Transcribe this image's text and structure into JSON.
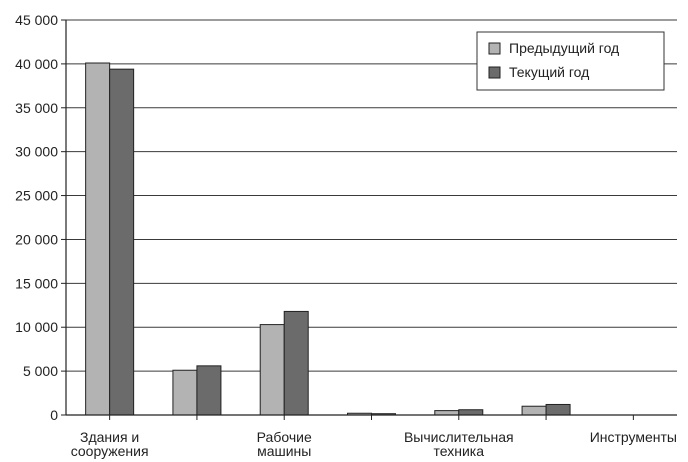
{
  "chart_data": {
    "type": "bar",
    "categories": [
      [
        "Здания и",
        "сооружения"
      ],
      [],
      [
        "Рабочие",
        "машины"
      ],
      [],
      [
        "Вычислительная",
        "техника"
      ],
      [],
      [
        "Инструменты"
      ]
    ],
    "series": [
      {
        "name": "Предыдущий год",
        "color": "#b3b3b3",
        "values": [
          40100,
          5100,
          10300,
          200,
          500,
          1000,
          0
        ]
      },
      {
        "name": "Текущий год",
        "color": "#6b6b6b",
        "values": [
          39400,
          5600,
          11800,
          150,
          600,
          1200,
          0
        ]
      }
    ],
    "ylim": [
      0,
      45000
    ],
    "yticks": [
      0,
      5000,
      10000,
      15000,
      20000,
      25000,
      30000,
      35000,
      40000,
      45000
    ],
    "ytick_labels": [
      "0",
      "5 000",
      "10 000",
      "15 000",
      "20 000",
      "25 000",
      "30 000",
      "35 000",
      "40 000",
      "45 000"
    ],
    "grid": true,
    "legend_position": "top-right"
  }
}
